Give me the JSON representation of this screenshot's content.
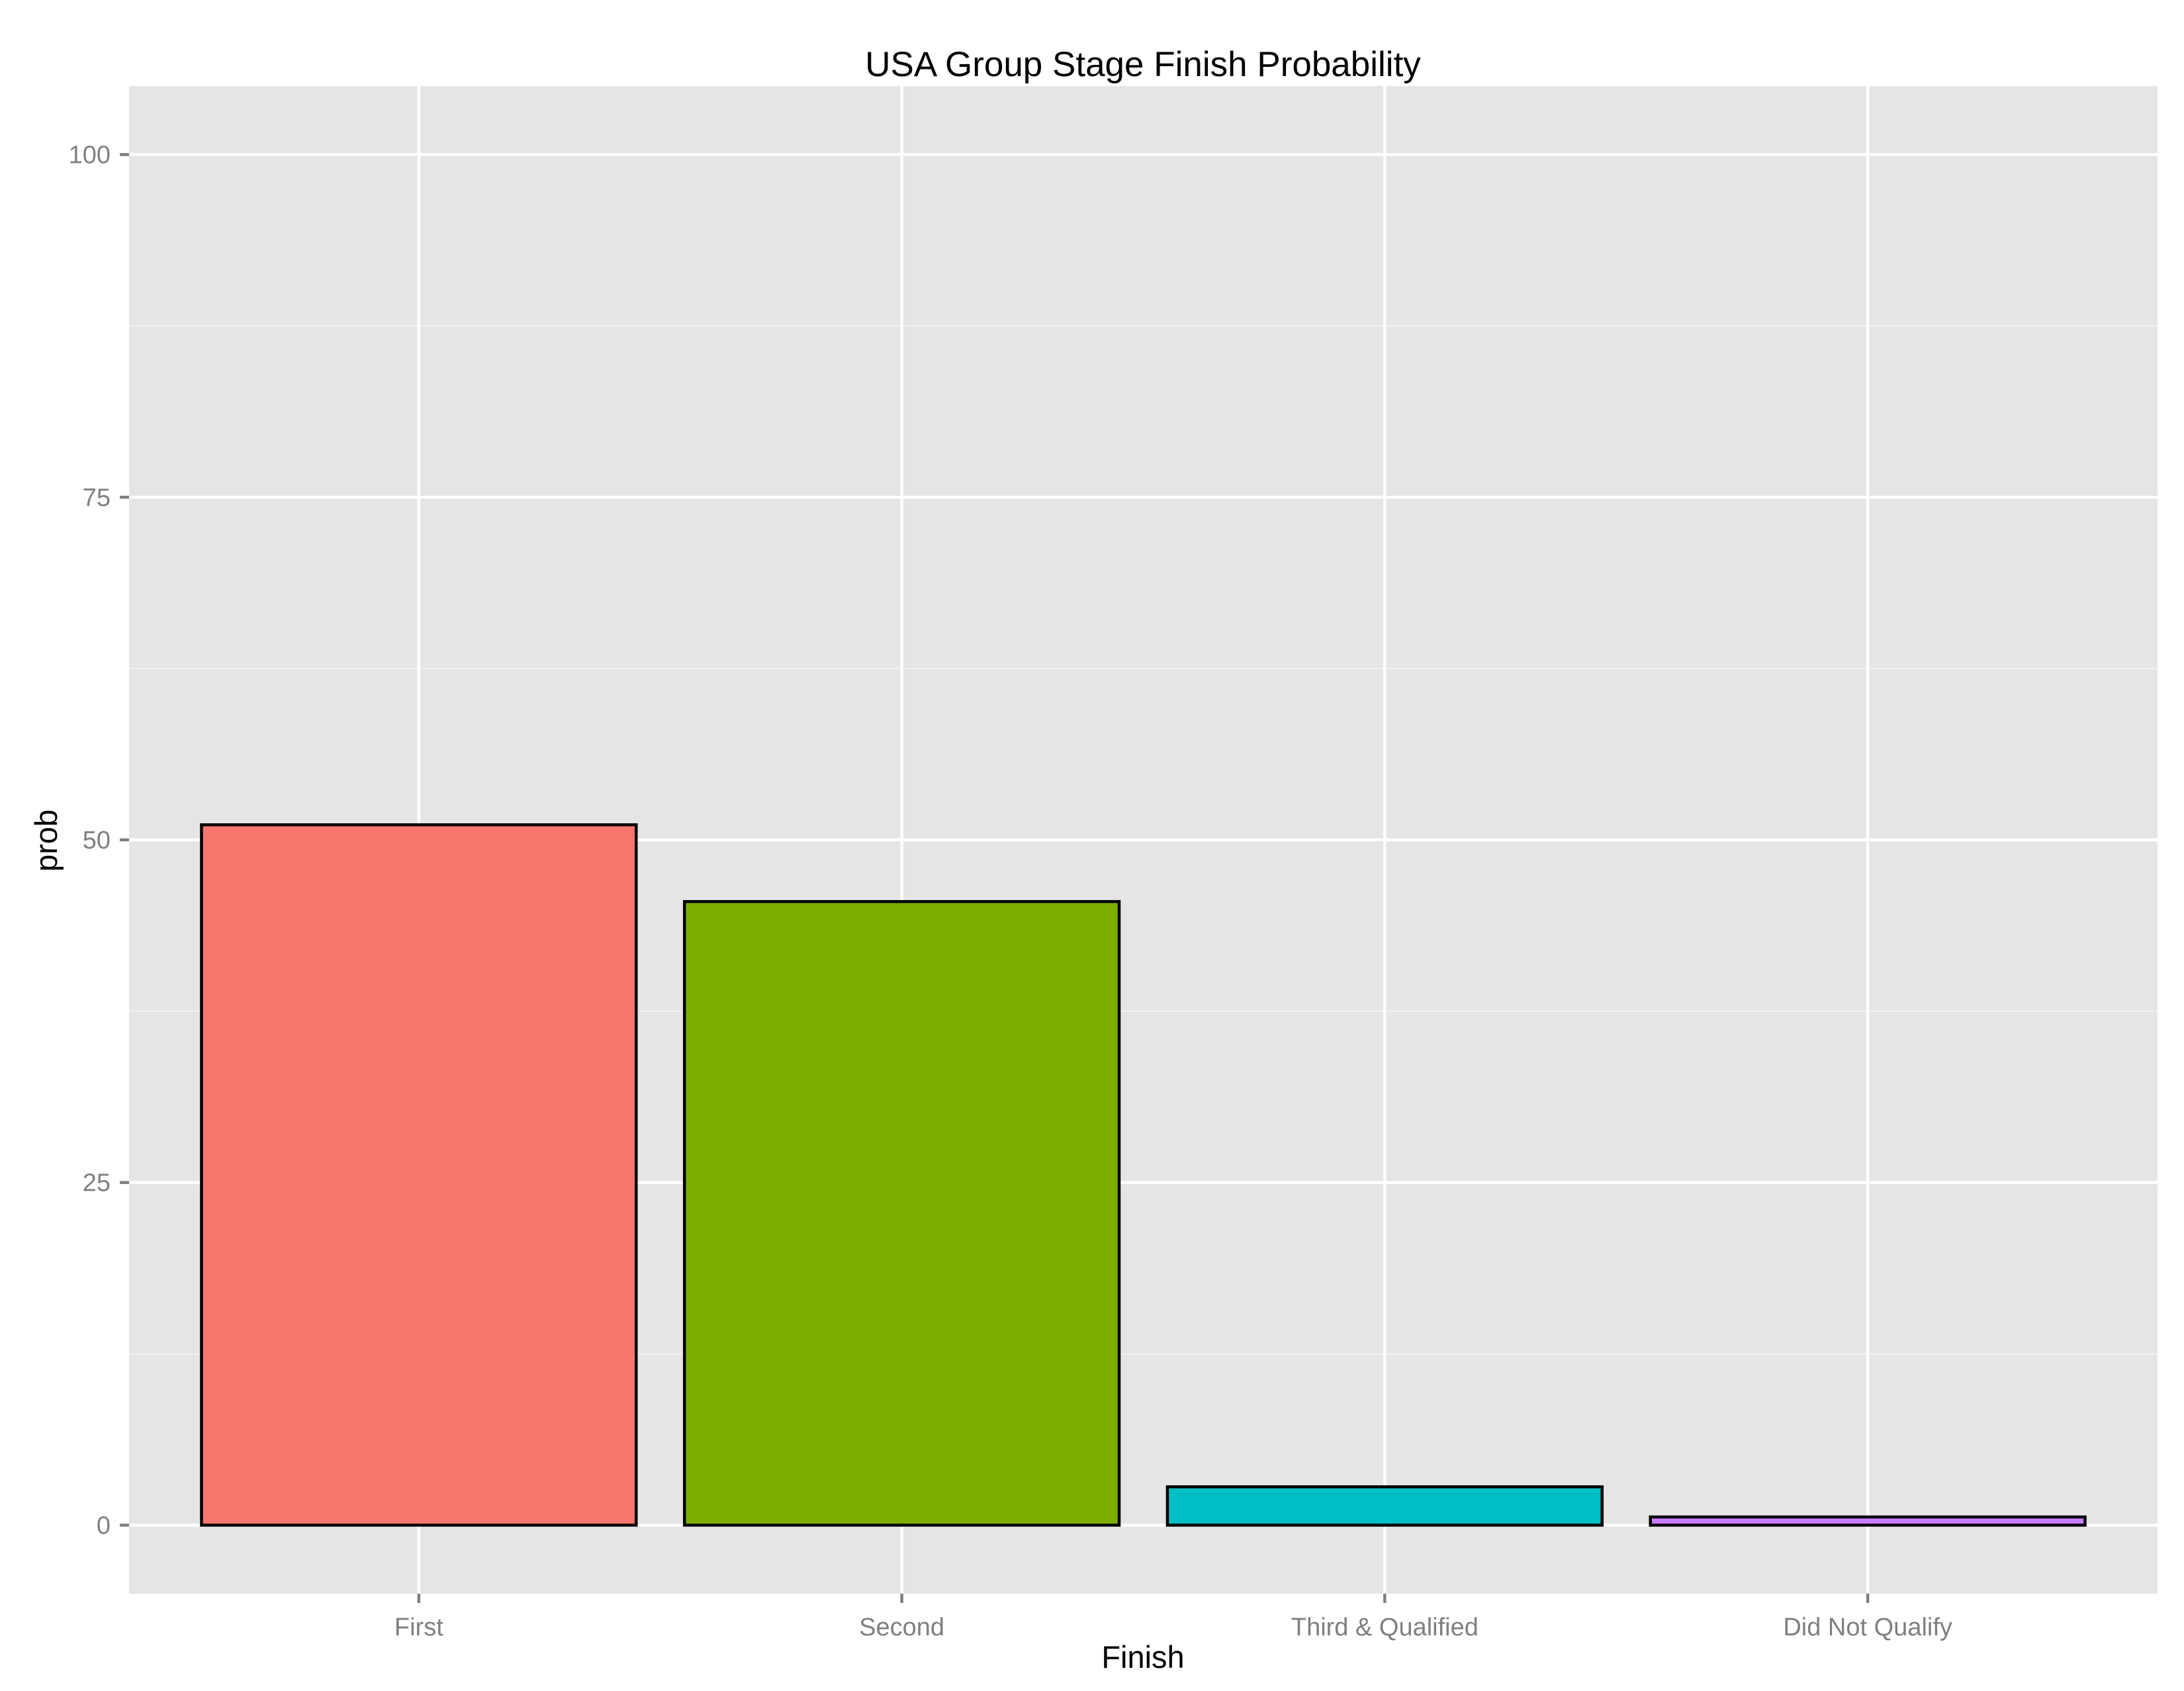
{
  "colors": {
    "panel_background": "#e5e5e5",
    "grid_major": "#ffffff",
    "grid_minor": "#f2f2f2",
    "tick_mark": "#7f7f7f",
    "bar_outline": "#000000"
  },
  "chart_data": {
    "type": "bar",
    "title": "USA Group Stage Finish Probability",
    "xlabel": "Finish",
    "ylabel": "prob",
    "categories": [
      "First",
      "Second",
      "Third & Qualified",
      "Did Not Qualify"
    ],
    "values": [
      51.1,
      45.5,
      2.8,
      0.6
    ],
    "bar_colors": [
      "#f8766d",
      "#7cae00",
      "#00bfc4",
      "#c77cff"
    ],
    "ylim": [
      -5,
      105
    ],
    "yticks": [
      0,
      25,
      50,
      75,
      100
    ],
    "ytick_labels": [
      "0",
      "25",
      "50",
      "75",
      "100"
    ],
    "grid": true,
    "legend": "none"
  }
}
